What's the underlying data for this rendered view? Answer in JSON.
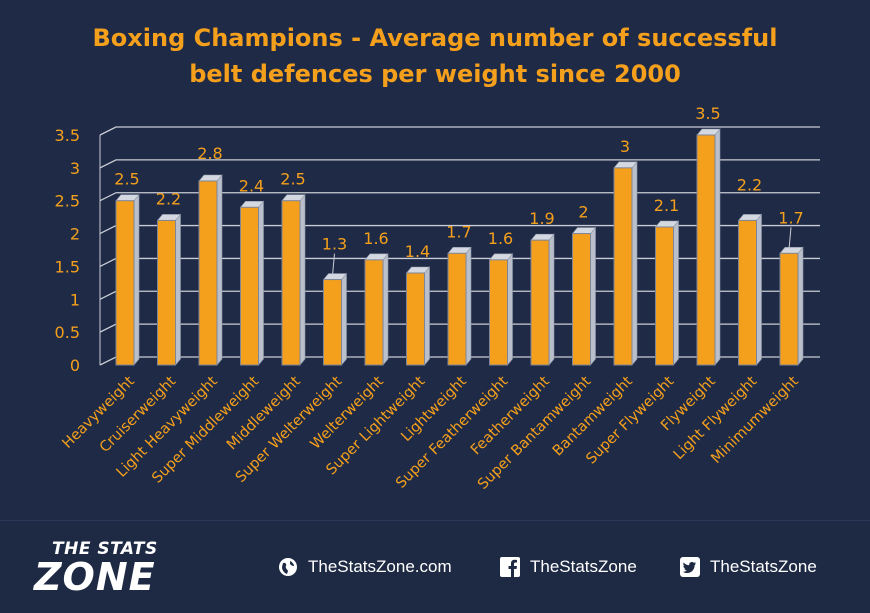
{
  "title": {
    "line1": "Boxing Champions   - Average number of successful",
    "line2": "belt defences per weight since 2000"
  },
  "chart_data": {
    "type": "bar",
    "categories": [
      "Heavyweight",
      "Cruiserweight",
      "Light Heavyweight",
      "Super Middleweight",
      "Middleweight",
      "Super Welterweight",
      "Welterweight",
      "Super Lightweight",
      "Lightweight",
      "Super Featherweight",
      "Featherweight",
      "Super Bantamweight",
      "Bantamweight",
      "Super Flyweight",
      "Flyweight",
      "Light Flyweight",
      "Minimumweight"
    ],
    "values": [
      2.5,
      2.2,
      2.8,
      2.4,
      2.5,
      1.3,
      1.6,
      1.4,
      1.7,
      1.6,
      1.9,
      2,
      3,
      2.1,
      3.5,
      2.2,
      1.7
    ],
    "value_labels": [
      "2.5",
      "2.2",
      "2.8",
      "2.4",
      "2.5",
      "1.3",
      "1.6",
      "1.4",
      "1.7",
      "1.6",
      "1.9",
      "2",
      "3",
      "2.1",
      "3.5",
      "2.2",
      "1.7"
    ],
    "yticks": [
      "0",
      "0.5",
      "1",
      "1.5",
      "2",
      "2.5",
      "3",
      "3.5"
    ],
    "ylim": [
      0,
      3.5
    ],
    "grid": true,
    "bar_color": "#f5a01c",
    "text_color": "#f5a01c"
  },
  "footer": {
    "logo_top": "THE STATS",
    "logo_bottom": "ZONE",
    "website": "TheStatsZone.com",
    "facebook": "TheStatsZone",
    "twitter": "TheStatsZone",
    "icons": [
      "globe-icon",
      "facebook-icon",
      "twitter-icon"
    ]
  }
}
